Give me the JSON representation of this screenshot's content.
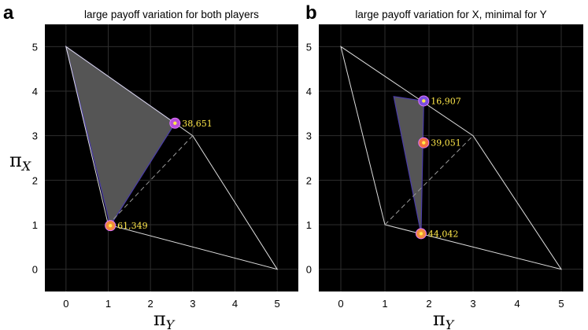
{
  "chart_data": [
    {
      "type": "scatter",
      "panel": "a",
      "title": "large payoff variation for both players",
      "xlabel": "π",
      "xlabel_sub": "Y",
      "ylabel": "π",
      "ylabel_sub": "X",
      "xlim": [
        -0.5,
        5.5
      ],
      "ylim": [
        -0.5,
        5.5
      ],
      "xticks": [
        "0",
        "1",
        "2",
        "3",
        "4",
        "5"
      ],
      "yticks": [
        "0",
        "1",
        "2",
        "3",
        "4",
        "5"
      ],
      "grid": true,
      "payoff_region": [
        [
          5,
          0
        ],
        [
          3,
          3
        ],
        [
          0,
          5
        ],
        [
          1,
          1
        ]
      ],
      "diagonal": [
        [
          1,
          1
        ],
        [
          3,
          3
        ]
      ],
      "shaded_region": [
        [
          0,
          5
        ],
        [
          2.58,
          3.28
        ],
        [
          1.05,
          0.98
        ]
      ],
      "points": [
        {
          "x": 2.58,
          "y": 3.28,
          "label": "38,651",
          "color": "#b64fd9"
        },
        {
          "x": 1.05,
          "y": 0.98,
          "label": "61,349",
          "color": "#f08a3c"
        }
      ]
    },
    {
      "type": "scatter",
      "panel": "b",
      "title": "large payoff variation for X, minimal for Y",
      "xlabel": "π",
      "xlabel_sub": "Y",
      "ylabel": "",
      "ylabel_sub": "",
      "xlim": [
        -0.5,
        5.5
      ],
      "ylim": [
        -0.5,
        5.5
      ],
      "xticks": [
        "0",
        "1",
        "2",
        "3",
        "4",
        "5"
      ],
      "yticks": [
        "0",
        "1",
        "2",
        "3",
        "4",
        "5"
      ],
      "grid": true,
      "payoff_region": [
        [
          5,
          0
        ],
        [
          3,
          3
        ],
        [
          0,
          5
        ],
        [
          1,
          1
        ]
      ],
      "diagonal": [
        [
          1,
          1
        ],
        [
          3,
          3
        ]
      ],
      "shaded_region": [
        [
          1.2,
          3.88
        ],
        [
          1.88,
          3.78
        ],
        [
          1.82,
          0.8
        ]
      ],
      "points": [
        {
          "x": 1.88,
          "y": 3.78,
          "label": "16,907",
          "color": "#7a4fe0"
        },
        {
          "x": 1.88,
          "y": 2.84,
          "label": "39,051",
          "color": "#f2713c"
        },
        {
          "x": 1.82,
          "y": 0.8,
          "label": "44,042",
          "color": "#f08a3c"
        }
      ]
    }
  ],
  "colors": {
    "plot_bg": "#000000",
    "grid": "#2e2e2e",
    "region_line": "#dcdcdc",
    "shade_fill": "#555555",
    "shade_edge": "#4a3ca8",
    "label_text": "#ffe84a"
  }
}
